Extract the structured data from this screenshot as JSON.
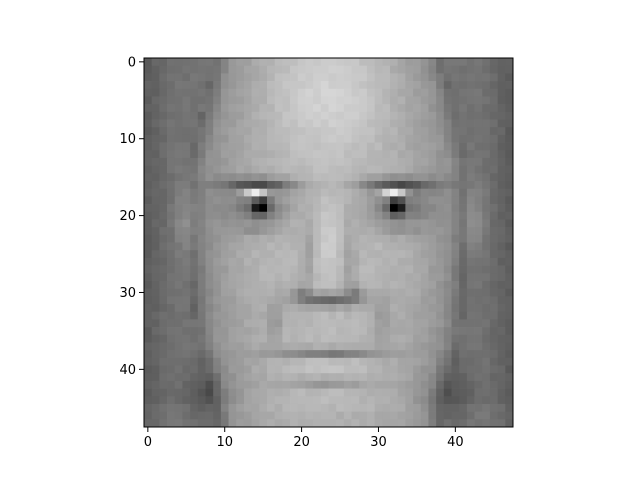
{
  "chart_data": {
    "type": "heatmap",
    "colormap": "gray",
    "grid": false,
    "image_size": [
      48,
      48
    ],
    "xlim": [
      -0.5,
      47.5
    ],
    "ylim": [
      47.5,
      -0.5
    ],
    "x_ticks": [
      0,
      10,
      20,
      30,
      40
    ],
    "y_ticks": [
      0,
      10,
      20,
      30,
      40
    ],
    "x_tick_labels": [
      "0",
      "10",
      "20",
      "30",
      "40"
    ],
    "y_tick_labels": [
      "0",
      "10",
      "20",
      "30",
      "40"
    ],
    "title": "",
    "xlabel": "",
    "ylabel": "",
    "description": "grayscale 48x48 image of a bald man's face, frontal view"
  }
}
